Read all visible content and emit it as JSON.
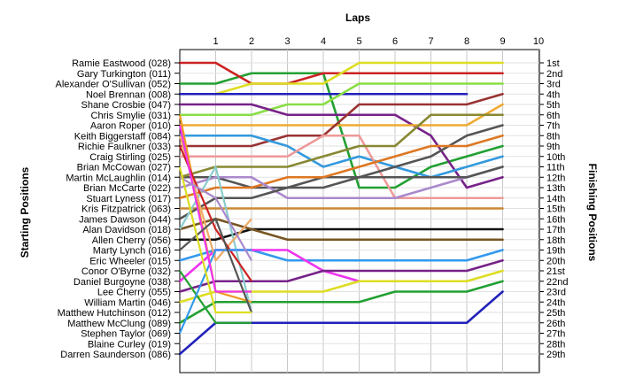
{
  "chart_data": {
    "type": "line",
    "title": "",
    "x_axis_title": "Laps",
    "left_axis_title": "Starting Positions",
    "right_axis_title": "Finishing Positions",
    "laps": [
      1,
      2,
      3,
      4,
      5,
      6,
      7,
      8,
      9,
      10
    ],
    "ylim_positions": [
      1,
      29
    ],
    "invert_y": true,
    "grid": true,
    "starting_order": [
      "Ramie Eastwood (028)",
      "Gary Turkington (011)",
      "Alexander O'Sullivan (052)",
      "Noel Brennan (008)",
      "Shane Crosbie (047)",
      "Chris Smylie (031)",
      "Aaron Roper (010)",
      "Keith Biggerstaff (084)",
      "Richie Faulkner (033)",
      "Craig Stirling (025)",
      "Brian McCowan (027)",
      "Martin McLaughlin (014)",
      "Brian McCarte (022)",
      "Stuart Lyness (017)",
      "Kris Fitzpatrick (063)",
      "James Dawson (044)",
      "Alan Davidson (018)",
      "Allen Cherry (056)",
      "Marty Lynch (016)",
      "Eric Wheeler (015)",
      "Conor O'Byrne (032)",
      "Daniel Burgoyne (038)",
      "Lee Cherry (055)",
      "William Martin (046)",
      "Matthew Hutchinson (012)",
      "Matthew McClung (089)",
      "Stephen Taylor (069)",
      "Blaine Curley (019)",
      "Darren Saunderson (086)"
    ],
    "finishing_labels": [
      "1st",
      "2nd",
      "3rd",
      "4th",
      "5th",
      "6th",
      "7th",
      "8th",
      "9th",
      "10th",
      "11th",
      "12th",
      "13th",
      "14th",
      "15th",
      "16th",
      "17th",
      "18th",
      "19th",
      "20th",
      "21st",
      "22nd",
      "23rd",
      "24th",
      "25th",
      "26th",
      "27th",
      "28th",
      "29th"
    ],
    "series": [
      {
        "color": "#22a032",
        "positions": [
          3,
          3,
          2,
          2,
          2,
          13,
          13,
          11,
          10,
          9
        ]
      },
      {
        "color": "#cc2222",
        "positions": [
          1,
          1,
          3,
          3,
          2,
          2,
          2,
          2,
          2,
          2
        ]
      },
      {
        "color": "#dddd22",
        "positions": [
          4,
          4,
          3,
          3,
          3,
          1,
          1,
          1,
          1,
          1
        ]
      },
      {
        "color": "#2222bb",
        "positions": [
          4,
          4,
          4,
          4,
          4,
          4,
          4,
          4,
          4
        ]
      },
      {
        "color": "#88dd44",
        "positions": [
          6,
          6,
          6,
          5,
          5,
          3,
          3,
          3,
          3,
          3
        ]
      },
      {
        "color": "#772288",
        "positions": [
          5,
          5,
          5,
          6,
          6,
          6,
          6,
          8,
          13,
          12
        ]
      },
      {
        "color": "#eeaa33",
        "positions": [
          7,
          7,
          7,
          7,
          7,
          7,
          7,
          7,
          7,
          5
        ]
      },
      {
        "color": "#993333",
        "positions": [
          9,
          9,
          9,
          8,
          8,
          5,
          5,
          5,
          5,
          4
        ]
      },
      {
        "color": "#3399dd",
        "positions": [
          8,
          8,
          8,
          9,
          11,
          10,
          11,
          12,
          11,
          10
        ]
      },
      {
        "color": "#ee9999",
        "positions": [
          10,
          10,
          10,
          10,
          8,
          8,
          14,
          14,
          14,
          14
        ]
      },
      {
        "color": "#555555",
        "positions": [
          12,
          12,
          13,
          13,
          12,
          12,
          11,
          10,
          8,
          7
        ]
      },
      {
        "color": "#888833",
        "positions": [
          12,
          11,
          11,
          11,
          10,
          9,
          9,
          6,
          6,
          6
        ]
      },
      {
        "color": "#dd7722",
        "positions": [
          14,
          13,
          13,
          12,
          12,
          11,
          10,
          9,
          9,
          8
        ]
      },
      {
        "color": "#aa88cc",
        "positions": [
          13,
          12,
          12,
          14,
          14,
          14,
          14,
          13,
          12,
          11
        ]
      },
      {
        "color": "#cc8833",
        "positions": [
          15,
          15,
          15,
          15,
          15,
          15,
          15,
          15,
          15,
          15
        ]
      },
      {
        "color": "#555555",
        "positions": [
          16,
          14,
          14,
          13,
          13,
          12,
          12,
          12,
          12,
          11
        ]
      },
      {
        "color": "#111111",
        "positions": [
          18,
          18,
          17,
          17,
          17,
          17,
          17,
          17,
          17,
          17
        ]
      },
      {
        "color": "#775522",
        "positions": [
          17,
          16,
          17,
          18,
          18,
          18,
          18,
          18,
          18,
          18
        ]
      },
      {
        "color": "#3399ee",
        "positions": [
          20,
          19,
          19,
          20,
          20,
          20,
          20,
          20,
          20,
          19
        ]
      },
      {
        "color": "#ee33ee",
        "positions": [
          22,
          19,
          19,
          19,
          21,
          22
        ]
      },
      {
        "color": "#772288",
        "positions": [
          23,
          22,
          22,
          22,
          21,
          21,
          21,
          21,
          21,
          20
        ]
      },
      {
        "color": "#dddd22",
        "positions": [
          24,
          23,
          23,
          23,
          23,
          22,
          22,
          22,
          22,
          21
        ]
      },
      {
        "color": "#22a032",
        "positions": [
          26,
          24,
          24,
          24,
          24,
          24,
          23,
          23,
          23,
          22
        ]
      },
      {
        "color": "#2222bb",
        "positions": [
          29,
          26,
          26,
          26,
          26,
          26,
          26,
          26,
          26,
          23
        ]
      }
    ]
  }
}
